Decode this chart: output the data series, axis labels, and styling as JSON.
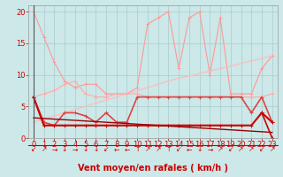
{
  "background_color": "#cce8e8",
  "grid_color": "#aacccc",
  "xlabel": "Vent moyen/en rafales ( km/h )",
  "xlabel_color": "#cc0000",
  "xlabel_fontsize": 7,
  "tick_color": "#cc0000",
  "tick_fontsize": 6,
  "xlim": [
    -0.5,
    23.5
  ],
  "ylim": [
    0,
    21
  ],
  "yticks": [
    0,
    5,
    10,
    15,
    20
  ],
  "xticks": [
    0,
    1,
    2,
    3,
    4,
    5,
    6,
    7,
    8,
    9,
    10,
    11,
    12,
    13,
    14,
    15,
    16,
    17,
    18,
    19,
    20,
    21,
    22,
    23
  ],
  "series": [
    {
      "name": "gust_peak",
      "color": "#ff9999",
      "linewidth": 0.8,
      "marker": "+",
      "markersize": 3,
      "y": [
        20,
        16,
        12,
        9,
        8,
        8.5,
        8.5,
        7,
        7,
        7,
        8,
        18,
        19,
        20,
        11,
        19,
        20,
        10,
        19,
        7,
        7,
        7,
        11,
        13
      ]
    },
    {
      "name": "gust_trend",
      "color": "#ffbbbb",
      "linewidth": 0.9,
      "marker": null,
      "markersize": 0,
      "y": [
        2.5,
        3.0,
        3.5,
        4.0,
        4.5,
        5.0,
        5.5,
        6.0,
        6.5,
        7.0,
        7.5,
        8.0,
        8.5,
        9.0,
        9.5,
        9.8,
        10.2,
        10.6,
        11.0,
        11.4,
        11.8,
        12.2,
        12.6,
        13.0
      ]
    },
    {
      "name": "mean_upper",
      "color": "#ffaaaa",
      "linewidth": 0.8,
      "marker": "+",
      "markersize": 3,
      "y": [
        6.5,
        7.0,
        7.5,
        8.5,
        9.0,
        7.0,
        6.5,
        6.5,
        7.0,
        7.0,
        7.0,
        6.5,
        6.5,
        6.5,
        6.5,
        6.5,
        6.5,
        6.5,
        6.5,
        6.5,
        6.5,
        6.5,
        6.5,
        7.0
      ]
    },
    {
      "name": "mean_red",
      "color": "#dd4444",
      "linewidth": 1.2,
      "marker": "+",
      "markersize": 3,
      "y": [
        6.5,
        2.5,
        2.0,
        4.0,
        4.0,
        3.5,
        2.5,
        4.0,
        2.5,
        2.5,
        6.5,
        6.5,
        6.5,
        6.5,
        6.5,
        6.5,
        6.5,
        6.5,
        6.5,
        6.5,
        6.5,
        4.0,
        6.5,
        2.5
      ]
    },
    {
      "name": "wind_darkred",
      "color": "#cc0000",
      "linewidth": 1.5,
      "marker": "+",
      "markersize": 3,
      "y": [
        6.5,
        2.0,
        2.0,
        2.0,
        2.0,
        2.0,
        2.0,
        2.0,
        2.0,
        2.0,
        2.0,
        2.0,
        2.0,
        2.0,
        2.0,
        2.0,
        2.0,
        2.0,
        2.0,
        2.0,
        2.0,
        2.0,
        4.0,
        2.5
      ]
    },
    {
      "name": "wind_trend_dark",
      "color": "#990000",
      "linewidth": 1.0,
      "marker": null,
      "markersize": 0,
      "y": [
        3.2,
        3.1,
        3.0,
        2.9,
        2.8,
        2.7,
        2.6,
        2.5,
        2.4,
        2.3,
        2.2,
        2.1,
        2.0,
        1.9,
        1.8,
        1.7,
        1.6,
        1.5,
        1.4,
        1.3,
        1.2,
        1.1,
        1.0,
        0.9
      ]
    },
    {
      "name": "last_segment",
      "color": "#cc0000",
      "linewidth": 1.2,
      "marker": "+",
      "markersize": 3,
      "y": [
        null,
        null,
        null,
        null,
        null,
        null,
        null,
        null,
        null,
        null,
        null,
        null,
        null,
        null,
        null,
        null,
        null,
        null,
        null,
        null,
        null,
        null,
        4.0,
        0.0
      ]
    }
  ],
  "arrow_labels": [
    "↙",
    "↗",
    "→",
    "↓",
    "→",
    "↓",
    "↓",
    "↙",
    "←",
    "←",
    "↑",
    "↗",
    "↗",
    "↑",
    "↙",
    "←",
    "↓",
    "→",
    "↗",
    "↙",
    "↗",
    "↗",
    "↙",
    "↗"
  ],
  "arrow_color": "#cc0000",
  "arrow_fontsize": 5.5,
  "red_line_y": -0.8
}
